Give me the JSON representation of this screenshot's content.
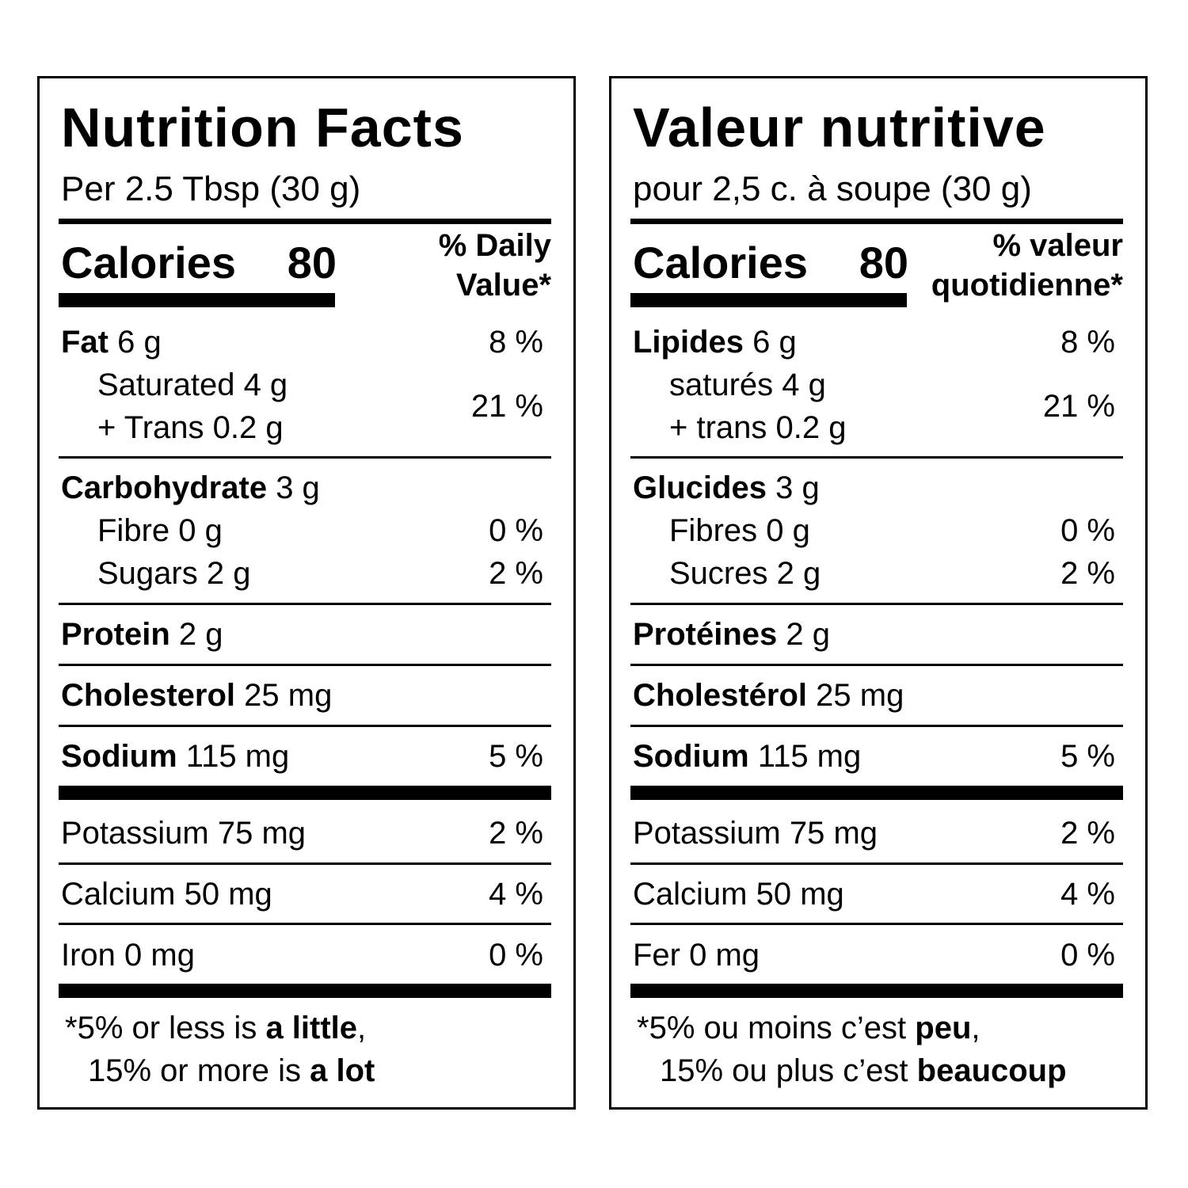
{
  "english": {
    "title": "Nutrition Facts",
    "serving": "Per 2.5 Tbsp (30 g)",
    "calories_label": "Calories",
    "calories_value": "80",
    "dv_line1": "% Daily",
    "dv_line2": "Value*",
    "fat": {
      "label": "Fat",
      "amount": "6 g",
      "dv": "8 %"
    },
    "saturated": {
      "label": "Saturated 4 g"
    },
    "trans": {
      "label": "+ Trans 0.2 g"
    },
    "sat_trans_dv": "21 %",
    "carbohydrate": {
      "label": "Carbohydrate",
      "amount": "3 g"
    },
    "fibre": {
      "label": "Fibre 0 g",
      "dv": "0 %"
    },
    "sugars": {
      "label": "Sugars 2 g",
      "dv": "2 %"
    },
    "protein": {
      "label": "Protein",
      "amount": "2 g"
    },
    "cholesterol": {
      "label": "Cholesterol",
      "amount": "25 mg"
    },
    "sodium": {
      "label": "Sodium",
      "amount": "115 mg",
      "dv": "5 %"
    },
    "potassium": {
      "label": "Potassium 75 mg",
      "dv": "2 %"
    },
    "calcium": {
      "label": "Calcium 50 mg",
      "dv": "4 %"
    },
    "iron": {
      "label": "Iron 0 mg",
      "dv": "0 %"
    },
    "footnote": {
      "star": "*",
      "l1_pre": "5% or less is ",
      "l1_bold": "a little",
      "l1_post": ",",
      "l2_pre": "15% or more is ",
      "l2_bold": "a lot"
    }
  },
  "french": {
    "title": "Valeur nutritive",
    "serving": "pour 2,5 c. à soupe (30 g)",
    "calories_label": "Calories",
    "calories_value": "80",
    "dv_line1": "% valeur",
    "dv_line2": "quotidienne*",
    "fat": {
      "label": "Lipides",
      "amount": "6 g",
      "dv": "8 %"
    },
    "saturated": {
      "label": "saturés 4 g"
    },
    "trans": {
      "label": "+ trans 0.2 g"
    },
    "sat_trans_dv": "21 %",
    "carbohydrate": {
      "label": "Glucides",
      "amount": "3 g"
    },
    "fibre": {
      "label": "Fibres 0 g",
      "dv": "0 %"
    },
    "sugars": {
      "label": "Sucres 2 g",
      "dv": "2 %"
    },
    "protein": {
      "label": "Protéines",
      "amount": "2 g"
    },
    "cholesterol": {
      "label": "Cholestérol",
      "amount": "25 mg"
    },
    "sodium": {
      "label": "Sodium",
      "amount": "115 mg",
      "dv": "5 %"
    },
    "potassium": {
      "label": "Potassium 75 mg",
      "dv": "2 %"
    },
    "calcium": {
      "label": "Calcium 50 mg",
      "dv": "4 %"
    },
    "iron": {
      "label": "Fer 0 mg",
      "dv": "0 %"
    },
    "footnote": {
      "star": "*",
      "l1_pre": "5% ou moins c’est ",
      "l1_bold": "peu",
      "l1_post": ",",
      "l2_pre": "15% ou plus c’est ",
      "l2_bold": "beaucoup"
    }
  }
}
